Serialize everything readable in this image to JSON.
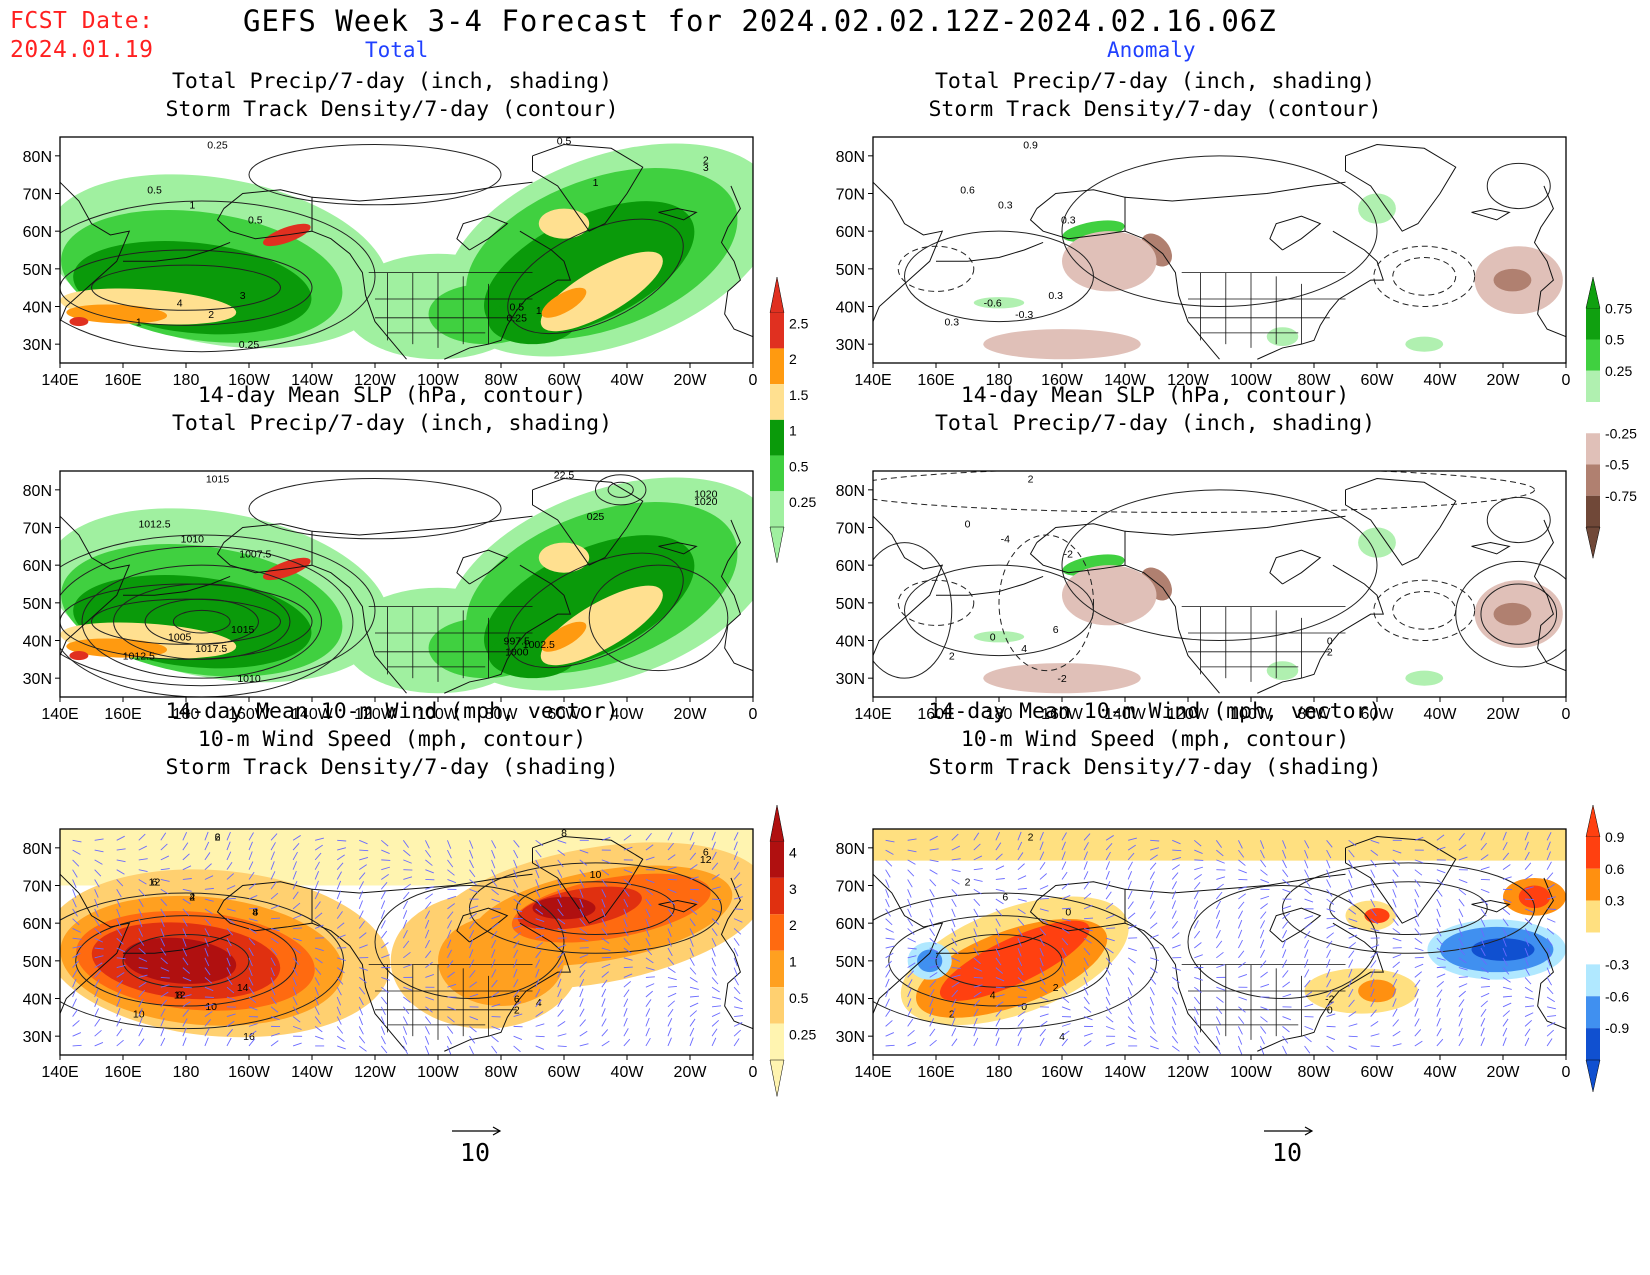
{
  "header": {
    "fcst_label": "FCST Date:",
    "fcst_date": "2024.01.19",
    "title": "GEFS Week 3-4 Forecast for 2024.02.02.12Z-2024.02.16.06Z",
    "col_left": "Total",
    "col_right": "Anomaly"
  },
  "map": {
    "lon_ticks": [
      "140E",
      "160E",
      "180",
      "160W",
      "140W",
      "120W",
      "100W",
      "80W",
      "60W",
      "40W",
      "20W",
      "0"
    ],
    "lat_ticks": [
      "80N",
      "70N",
      "60N",
      "50N",
      "40N",
      "30N"
    ]
  },
  "panels": [
    {
      "id": "tl",
      "title1": "Total Precip/7-day (inch, shading)",
      "title2": "Storm Track Density/7-day (contour)",
      "title3": "",
      "theme": "precip"
    },
    {
      "id": "tr",
      "title1": "Total Precip/7-day (inch, shading)",
      "title2": "Storm Track Density/7-day (contour)",
      "title3": "",
      "theme": "precip-anom"
    },
    {
      "id": "ml",
      "title1": "14-day Mean SLP (hPa, contour)",
      "title2": "Total Precip/7-day (inch, shading)",
      "title3": "",
      "theme": "precip"
    },
    {
      "id": "mr",
      "title1": "14-day Mean SLP (hPa, contour)",
      "title2": "Total Precip/7-day (inch, shading)",
      "title3": "",
      "theme": "precip-anom"
    },
    {
      "id": "bl",
      "title1": "14-day Mean 10-m Wind (mph, vector)",
      "title2": "10-m Wind Speed (mph, contour)",
      "title3": "Storm Track Density/7-day (shading)",
      "theme": "storm"
    },
    {
      "id": "br",
      "title1": "14-day Mean 10-m Wind (mph, vector)",
      "title2": "10-m Wind Speed (mph, contour)",
      "title3": "Storm Track Density/7-day (shading)",
      "theme": "storm-anom"
    }
  ],
  "colorbars": {
    "precip": {
      "labels": [
        "2.5",
        "2",
        "1.5",
        "1",
        "0.5",
        "0.25"
      ],
      "colors": [
        "#e03020",
        "#ff9a10",
        "#ffe090",
        "#0a9a0a",
        "#40d040",
        "#a0f0a0"
      ]
    },
    "precip_anom": {
      "labels": [
        "0.75",
        "0.5",
        "0.25",
        "-0.25",
        "-0.5",
        "-0.75"
      ],
      "colors": [
        "#10a010",
        "#40d040",
        "#b0f0b0",
        "#ffffff",
        "#e0c0b8",
        "#b08070",
        "#704838"
      ]
    },
    "storm": {
      "labels": [
        "4",
        "3",
        "2",
        "1",
        "0.5",
        "0.25"
      ],
      "colors": [
        "#b01010",
        "#e03010",
        "#ff6a10",
        "#ffa020",
        "#ffd070",
        "#fff4b0"
      ]
    },
    "storm_anom": {
      "labels": [
        "0.9",
        "0.6",
        "0.3",
        "-0.3",
        "-0.6",
        "-0.9"
      ],
      "colors": [
        "#ff4010",
        "#ff9010",
        "#ffe080",
        "#ffffff",
        "#b0e8ff",
        "#4090f0",
        "#1050d0"
      ]
    }
  },
  "map_labels": {
    "tl": [
      "0.25",
      "0.5",
      "1",
      "0.5",
      "4",
      "2",
      "3",
      "1",
      "0.25",
      "0.5",
      "0.25",
      "1",
      "2",
      "3",
      "1",
      "0.5"
    ],
    "tr": [
      "0.9",
      "0.6",
      "0.3",
      "0.3",
      "-0.6",
      "-0.3",
      "0.3",
      "0.3"
    ],
    "ml": [
      "1015",
      "1012.5",
      "1010",
      "1007.5",
      "1005",
      "1017.5",
      "1015",
      "1012.5",
      "1010",
      "997.5",
      "1000",
      "1002.5",
      "1020",
      "1020",
      "025",
      "22.5"
    ],
    "mr": [
      "2",
      "0",
      "-4",
      "-2",
      "0",
      "4",
      "6",
      "2",
      "-2",
      "0",
      "2"
    ],
    "bl": [
      "2",
      "6",
      "4",
      "8",
      "12",
      "10",
      "14",
      "10",
      "16",
      "6",
      "2",
      "4",
      "6",
      "12",
      "10",
      "8",
      "6",
      "12",
      "2",
      "4",
      "8"
    ],
    "br": [
      "2",
      "2",
      "6",
      "0",
      "4",
      "0",
      "2",
      "2",
      "4",
      "-2",
      "0"
    ]
  },
  "reference_vector": {
    "value": "10"
  }
}
